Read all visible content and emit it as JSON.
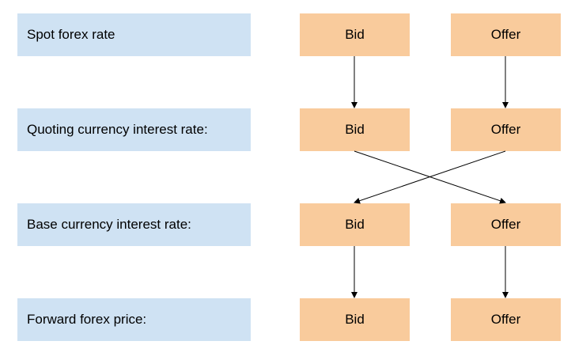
{
  "rows": [
    {
      "label": "Spot forex rate",
      "bid": "Bid",
      "offer": "Offer"
    },
    {
      "label": "Quoting currency interest rate:",
      "bid": "Bid",
      "offer": "Offer"
    },
    {
      "label": "Base currency interest rate:",
      "bid": "Bid",
      "offer": "Offer"
    },
    {
      "label": "Forward forex price:",
      "bid": "Bid",
      "offer": "Offer"
    }
  ],
  "colors": {
    "label_fill": "#cfe2f3",
    "value_fill": "#f9cb9c",
    "connector": "#000000"
  }
}
